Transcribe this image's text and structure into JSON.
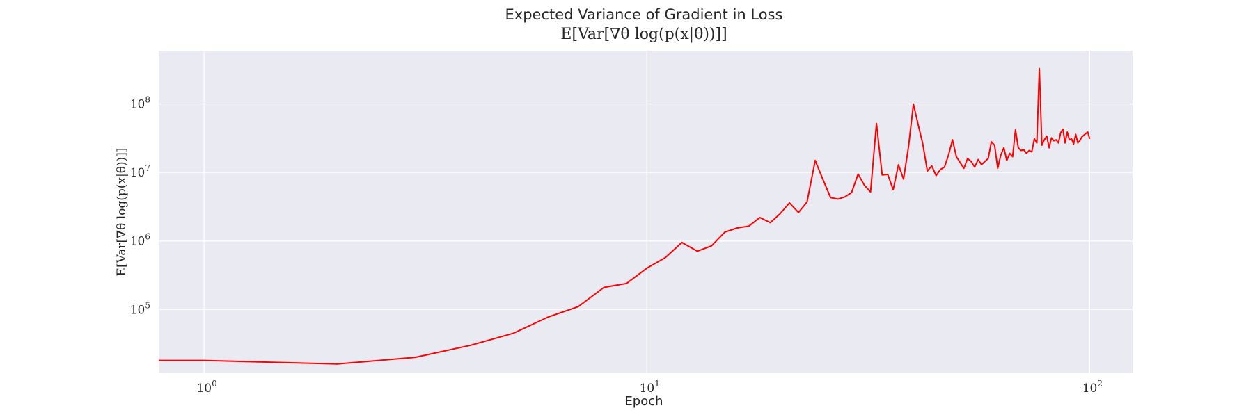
{
  "chart_data": {
    "type": "line",
    "title": "Expected Variance of Gradient in Loss",
    "subtitle": "E[Var[∇θ log(p(x|θ))]]",
    "xlabel": "Epoch",
    "ylabel": "E[Var[∇θ log(p(x|θ))]]",
    "xscale": "log",
    "yscale": "log",
    "xlim": [
      0.79,
      125
    ],
    "ylim": [
      12000,
      600000000
    ],
    "grid": true,
    "background_color": "#eaeaf2",
    "line_color": "#ff0000",
    "x_ticks": [
      {
        "x": 1,
        "base": "10",
        "exp": "0"
      },
      {
        "x": 10,
        "base": "10",
        "exp": "1"
      },
      {
        "x": 100,
        "base": "10",
        "exp": "2"
      }
    ],
    "y_ticks": [
      {
        "y": 100000,
        "base": "10",
        "exp": "5"
      },
      {
        "y": 1000000,
        "base": "10",
        "exp": "6"
      },
      {
        "y": 10000000,
        "base": "10",
        "exp": "7"
      },
      {
        "y": 100000000,
        "base": "10",
        "exp": "8"
      }
    ],
    "series": [
      {
        "x": [
          0.79,
          1,
          2,
          3,
          4,
          5,
          6,
          7,
          8,
          9,
          10,
          11,
          12,
          13,
          14,
          15,
          16,
          17,
          18,
          19,
          20,
          21,
          22,
          23,
          24,
          25,
          26,
          27,
          28,
          29,
          30,
          31,
          32,
          33,
          34,
          35,
          36,
          37,
          38,
          39,
          40,
          41,
          42,
          43,
          44,
          45,
          46,
          47,
          48,
          49,
          50,
          51,
          52,
          53,
          54,
          55,
          56,
          57,
          58,
          59,
          60,
          61,
          62,
          63,
          64,
          65,
          66,
          67,
          68,
          69,
          70,
          71,
          72,
          73,
          74,
          75,
          76,
          77,
          78,
          79,
          80,
          81,
          82,
          83,
          84,
          85,
          86,
          87,
          88,
          89,
          90,
          91,
          92,
          93,
          94,
          95,
          96,
          97,
          98,
          99,
          100
        ],
        "y": [
          18000,
          18000,
          16000,
          20000,
          30000,
          45000,
          78000,
          110000,
          210000,
          240000,
          400000,
          570000,
          950000,
          710000,
          850000,
          1350000,
          1550000,
          1650000,
          2200000,
          1850000,
          2500000,
          3600000,
          2600000,
          3700000,
          15000000,
          7800000,
          4300000,
          4100000,
          4400000,
          5100000,
          9500000,
          6500000,
          5200000,
          52000000,
          9200000,
          9400000,
          5600000,
          13000000,
          8000000,
          24000000,
          100000000,
          50000000,
          26000000,
          10500000,
          12500000,
          9000000,
          11000000,
          12000000,
          18000000,
          30000000,
          17000000,
          14000000,
          11500000,
          16000000,
          14500000,
          12000000,
          15500000,
          13000000,
          14500000,
          16000000,
          28000000,
          25000000,
          11500000,
          18000000,
          23000000,
          15000000,
          19000000,
          17000000,
          42000000,
          23000000,
          21000000,
          21500000,
          19000000,
          21000000,
          20000000,
          31000000,
          27000000,
          330000000,
          25000000,
          30000000,
          34000000,
          23000000,
          32000000,
          29000000,
          30000000,
          27000000,
          38000000,
          43000000,
          27000000,
          39000000,
          30000000,
          31000000,
          26000000,
          36000000,
          27000000,
          29000000,
          33000000,
          35000000,
          37000000,
          39000000,
          31000000
        ]
      }
    ]
  }
}
